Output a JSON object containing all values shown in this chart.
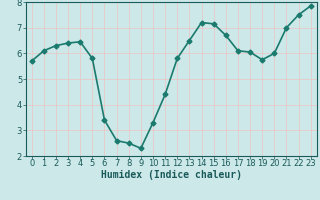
{
  "x": [
    0,
    1,
    2,
    3,
    4,
    5,
    6,
    7,
    8,
    9,
    10,
    11,
    12,
    13,
    14,
    15,
    16,
    17,
    18,
    19,
    20,
    21,
    22,
    23
  ],
  "y": [
    5.7,
    6.1,
    6.3,
    6.4,
    6.45,
    5.8,
    3.4,
    2.6,
    2.5,
    2.3,
    3.3,
    4.4,
    5.8,
    6.5,
    7.2,
    7.15,
    6.7,
    6.1,
    6.05,
    5.75,
    6.0,
    7.0,
    7.5,
    7.85
  ],
  "line_color": "#1a7a6e",
  "marker": "D",
  "marker_size": 2.5,
  "bg_color": "#cce8e8",
  "grid_color": "#e8c8c8",
  "xlabel": "Humidex (Indice chaleur)",
  "ylabel": "",
  "ylim": [
    2,
    8
  ],
  "xlim": [
    -0.5,
    23.5
  ],
  "yticks": [
    2,
    3,
    4,
    5,
    6,
    7,
    8
  ],
  "xticks": [
    0,
    1,
    2,
    3,
    4,
    5,
    6,
    7,
    8,
    9,
    10,
    11,
    12,
    13,
    14,
    15,
    16,
    17,
    18,
    19,
    20,
    21,
    22,
    23
  ],
  "xlabel_fontsize": 7,
  "tick_fontsize": 6,
  "linewidth": 1.2
}
